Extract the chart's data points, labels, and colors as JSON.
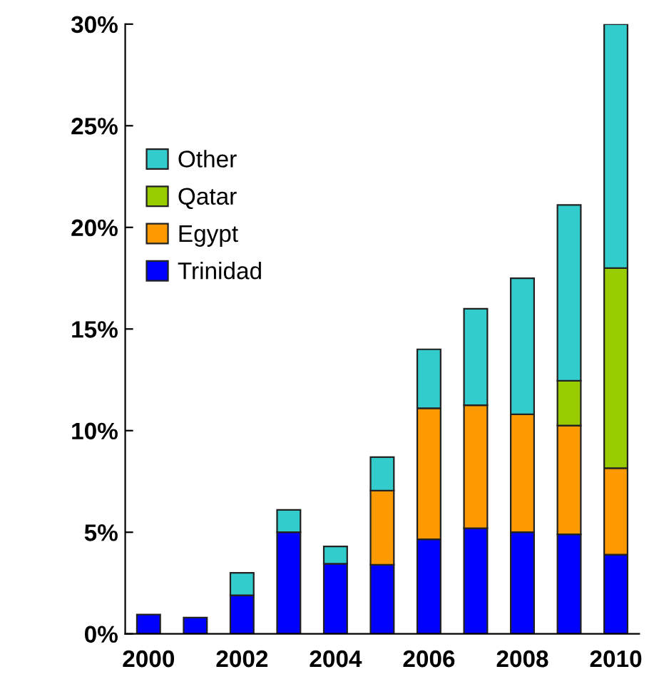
{
  "chart_data": {
    "type": "bar",
    "stacked": true,
    "categories": [
      "2000",
      null,
      "2002",
      null,
      "2004",
      null,
      "2006",
      null,
      "2008",
      null,
      "2010"
    ],
    "series": [
      {
        "name": "Trinidad",
        "color": "#0000ff",
        "values": [
          0.95,
          0.8,
          1.9,
          5.0,
          3.45,
          3.4,
          4.65,
          5.2,
          5.0,
          4.9,
          3.9
        ]
      },
      {
        "name": "Egypt",
        "color": "#ff9900",
        "values": [
          null,
          null,
          null,
          null,
          null,
          3.65,
          6.45,
          6.05,
          5.8,
          5.35,
          4.25
        ]
      },
      {
        "name": "Qatar",
        "color": "#99cc00",
        "values": [
          null,
          null,
          null,
          null,
          null,
          null,
          null,
          null,
          null,
          2.2,
          9.85
        ]
      },
      {
        "name": "Other",
        "color": "#33cccc",
        "values": [
          null,
          null,
          1.1,
          1.1,
          0.85,
          1.65,
          2.9,
          4.75,
          6.7,
          8.65,
          12.0
        ]
      }
    ],
    "ylim": [
      0,
      30
    ],
    "yticks": [
      {
        "value": 0,
        "label": "0%"
      },
      {
        "value": 5,
        "label": "5%"
      },
      {
        "value": 10,
        "label": "10%"
      },
      {
        "value": 15,
        "label": "15%"
      },
      {
        "value": 20,
        "label": "20%"
      },
      {
        "value": 25,
        "label": "25%"
      },
      {
        "value": 30,
        "label": "30%"
      }
    ],
    "legend": "left",
    "grid": false
  }
}
